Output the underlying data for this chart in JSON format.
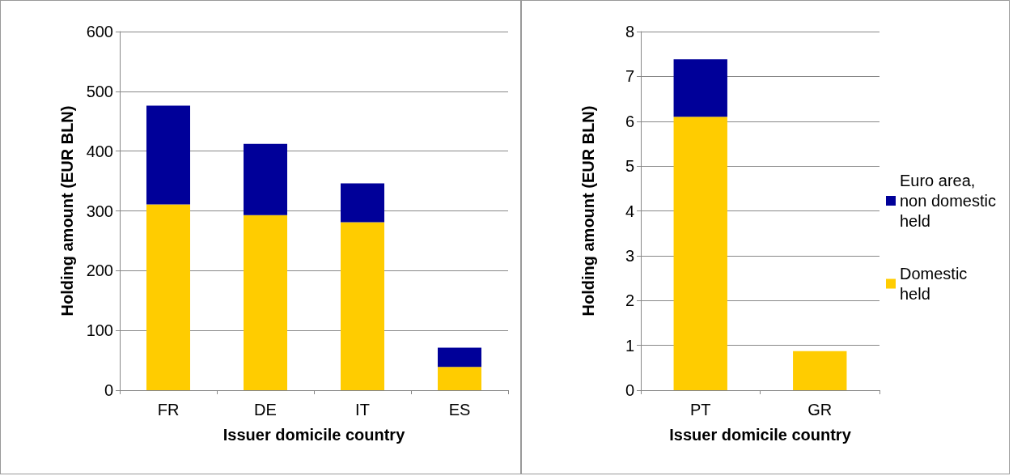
{
  "chart_data": [
    {
      "type": "bar",
      "stacked": true,
      "xlabel": "Issuer domicile country",
      "ylabel": "Holding amount (EUR BLN)",
      "categories": [
        "FR",
        "DE",
        "IT",
        "ES"
      ],
      "series": [
        {
          "color": "#ffcc00",
          "values": [
            311,
            293,
            281,
            39
          ]
        },
        {
          "color": "#000099",
          "values": [
            165,
            119,
            65,
            32
          ]
        }
      ],
      "ylim": [
        0,
        600
      ],
      "yticks": [
        0,
        100,
        200,
        300,
        400,
        500,
        600
      ],
      "grid": "y",
      "legend": false
    },
    {
      "type": "bar",
      "stacked": true,
      "xlabel": "Issuer domicile country",
      "ylabel": "Holding amount (EUR BLN)",
      "categories": [
        "PT",
        "GR"
      ],
      "series": [
        {
          "name": "Domestic held",
          "color": "#ffcc00",
          "values": [
            6.1,
            0.87
          ]
        },
        {
          "name": "Euro area, non domestic held",
          "color": "#000099",
          "values": [
            1.28,
            null
          ]
        }
      ],
      "ylim": [
        0,
        8
      ],
      "yticks": [
        0,
        1,
        2,
        3,
        4,
        5,
        6,
        7,
        8
      ],
      "grid": "y",
      "legend": "right"
    }
  ]
}
